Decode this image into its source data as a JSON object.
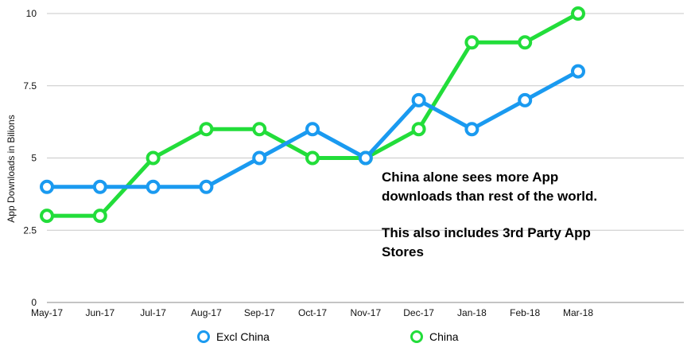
{
  "chart_data": {
    "type": "line",
    "xlabel": "",
    "ylabel": "App Downloads in Bilions",
    "categories": [
      "May-17",
      "Jun-17",
      "Jul-17",
      "Aug-17",
      "Sep-17",
      "Oct-17",
      "Nov-17",
      "Dec-17",
      "Jan-18",
      "Feb-18",
      "Mar-18"
    ],
    "ylim": [
      0,
      10
    ],
    "yticks": [
      "0",
      "2.5",
      "5",
      "7.5",
      "10"
    ],
    "grid": true,
    "legend_position": "bottom",
    "series": [
      {
        "name": "Excl China",
        "color": "#1a9af0",
        "values": [
          4,
          4,
          4,
          4,
          5,
          6,
          5,
          7,
          6,
          7,
          8
        ]
      },
      {
        "name": "China",
        "color": "#22dd3a",
        "values": [
          3,
          3,
          5,
          6,
          6,
          5,
          5,
          6,
          9,
          9,
          10
        ]
      }
    ],
    "annotations": [
      "China alone sees more App downloads than rest of the world.",
      "This also includes 3rd Party App Stores"
    ]
  }
}
